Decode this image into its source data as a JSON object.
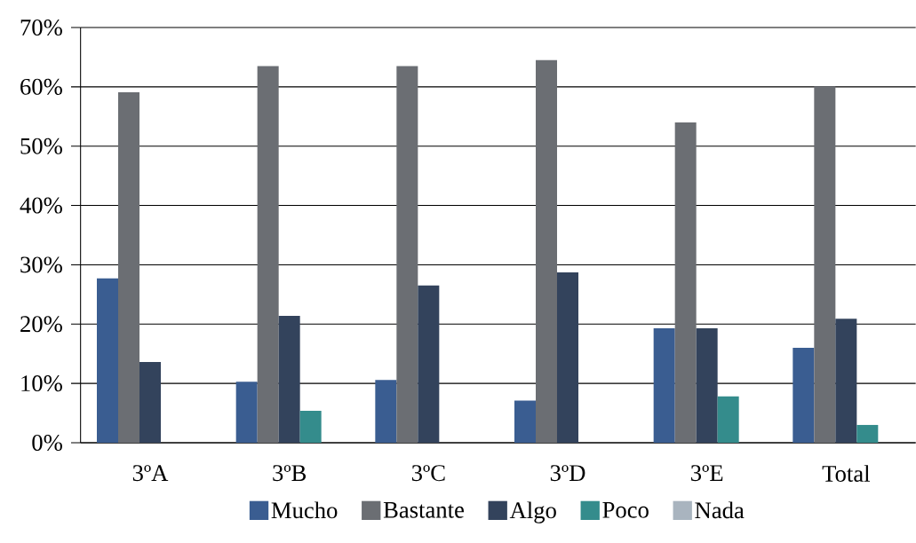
{
  "chart_data": {
    "type": "bar",
    "categories": [
      "3ºA",
      "3ºB",
      "3ºC",
      "3ºD",
      "3ºE",
      "Total"
    ],
    "series": [
      {
        "name": "Mucho",
        "color": "#3a5d91",
        "values": [
          27.7,
          10.3,
          10.6,
          7.1,
          19.3,
          16.0
        ]
      },
      {
        "name": "Bastante",
        "color": "#6b6e73",
        "values": [
          59.1,
          63.5,
          63.5,
          64.5,
          54.0,
          60.1
        ]
      },
      {
        "name": "Algo",
        "color": "#33435c",
        "values": [
          13.6,
          21.4,
          26.5,
          28.7,
          19.3,
          20.9
        ]
      },
      {
        "name": "Poco",
        "color": "#348c8c",
        "values": [
          0,
          5.4,
          0,
          0,
          7.8,
          3.0
        ]
      },
      {
        "name": "Nada",
        "color": "#a9b4bf",
        "values": [
          0,
          0,
          0,
          0,
          0,
          0
        ]
      }
    ],
    "ylim": [
      0,
      70
    ],
    "yticks": [
      {
        "value": 0,
        "label": "0%"
      },
      {
        "value": 10,
        "label": "10%"
      },
      {
        "value": 20,
        "label": "20%"
      },
      {
        "value": 30,
        "label": "30%"
      },
      {
        "value": 40,
        "label": "40%"
      },
      {
        "value": 50,
        "label": "50%"
      },
      {
        "value": 60,
        "label": "60%"
      },
      {
        "value": 70,
        "label": "70%"
      }
    ],
    "grid": "y",
    "legend": "bottom"
  }
}
